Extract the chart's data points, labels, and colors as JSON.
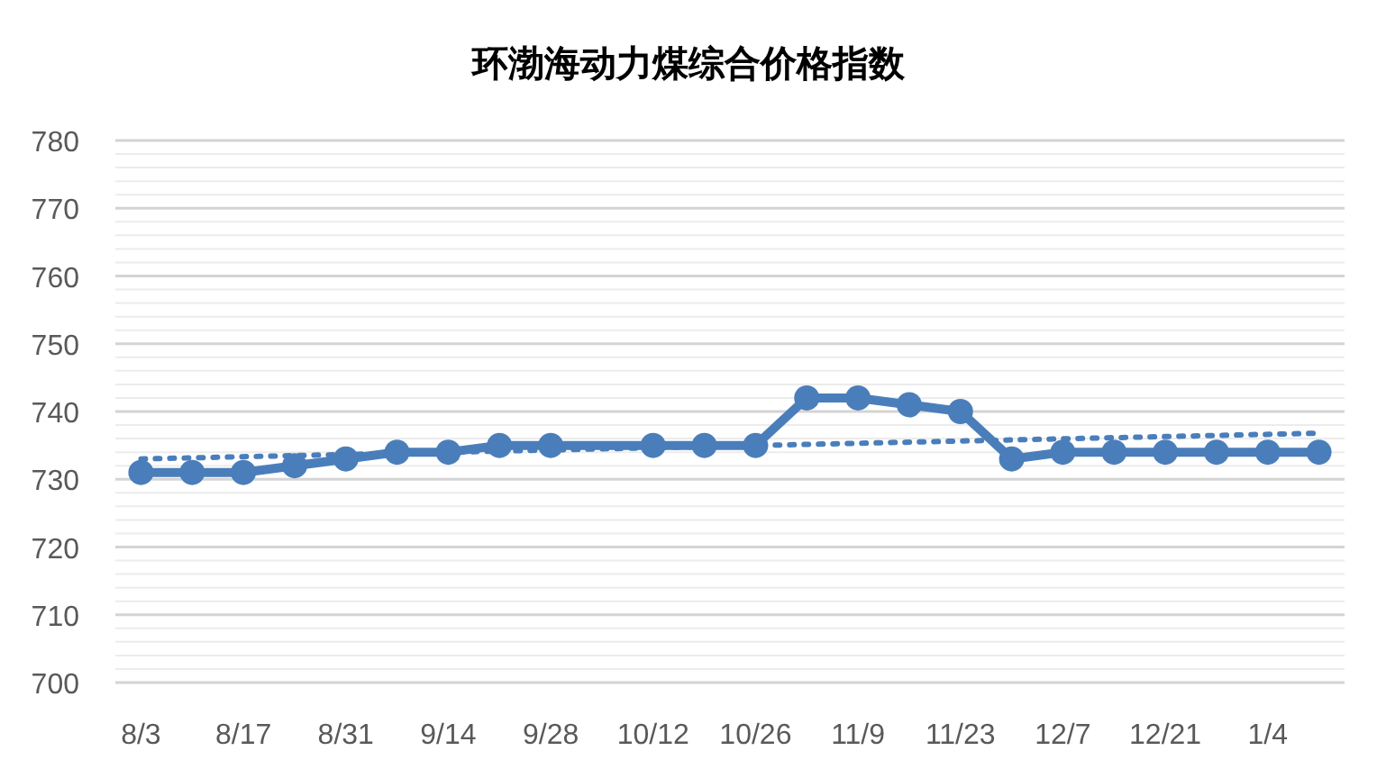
{
  "chart_data": {
    "type": "line",
    "title": "环渤海动力煤综合价格指数",
    "categories": [
      "8/3",
      null,
      "8/17",
      null,
      "8/31",
      null,
      "9/14",
      null,
      "9/28",
      null,
      "10/12",
      null,
      "10/26",
      null,
      "11/9",
      null,
      "11/23",
      null,
      "12/7",
      null,
      "12/21",
      null,
      "1/4",
      null
    ],
    "series": [
      {
        "color": "#4a7ebb",
        "marker": "circle",
        "line_style": "solid",
        "values": [
          731,
          731,
          731,
          732,
          733,
          734,
          734,
          735,
          735,
          null,
          735,
          735,
          735,
          742,
          742,
          741,
          740,
          733,
          734,
          734,
          734,
          734,
          734,
          734
        ]
      },
      {
        "color": "#4a7ebb",
        "marker": "none",
        "line_style": "dotted",
        "values": [
          733,
          null,
          null,
          null,
          null,
          null,
          null,
          null,
          null,
          null,
          null,
          null,
          null,
          null,
          null,
          null,
          null,
          null,
          null,
          null,
          null,
          null,
          null,
          736.8
        ]
      }
    ],
    "ylim": [
      700,
      780
    ],
    "yticks": [
      700,
      {
        "value": 702,
        "label": null
      },
      {
        "value": 704,
        "label": null
      },
      {
        "value": 706,
        "label": null
      },
      {
        "value": 708,
        "label": null
      },
      710,
      {
        "value": 712,
        "label": null
      },
      {
        "value": 714,
        "label": null
      },
      {
        "value": 716,
        "label": null
      },
      {
        "value": 718,
        "label": null
      },
      720,
      {
        "value": 722,
        "label": null
      },
      {
        "value": 724,
        "label": null
      },
      {
        "value": 726,
        "label": null
      },
      {
        "value": 728,
        "label": null
      },
      730,
      {
        "value": 732,
        "label": null
      },
      {
        "value": 734,
        "label": null
      },
      {
        "value": 736,
        "label": null
      },
      {
        "value": 738,
        "label": null
      },
      740,
      {
        "value": 742,
        "label": null
      },
      {
        "value": 744,
        "label": null
      },
      {
        "value": 746,
        "label": null
      },
      {
        "value": 748,
        "label": null
      },
      750,
      {
        "value": 752,
        "label": null
      },
      {
        "value": 754,
        "label": null
      },
      {
        "value": 756,
        "label": null
      },
      {
        "value": 758,
        "label": null
      },
      760,
      {
        "value": 762,
        "label": null
      },
      {
        "value": 764,
        "label": null
      },
      {
        "value": 766,
        "label": null
      },
      {
        "value": 768,
        "label": null
      },
      770,
      {
        "value": 772,
        "label": null
      },
      {
        "value": 774,
        "label": null
      },
      {
        "value": 776,
        "label": null
      },
      {
        "value": 778,
        "label": null
      },
      780
    ],
    "grid": "y"
  }
}
